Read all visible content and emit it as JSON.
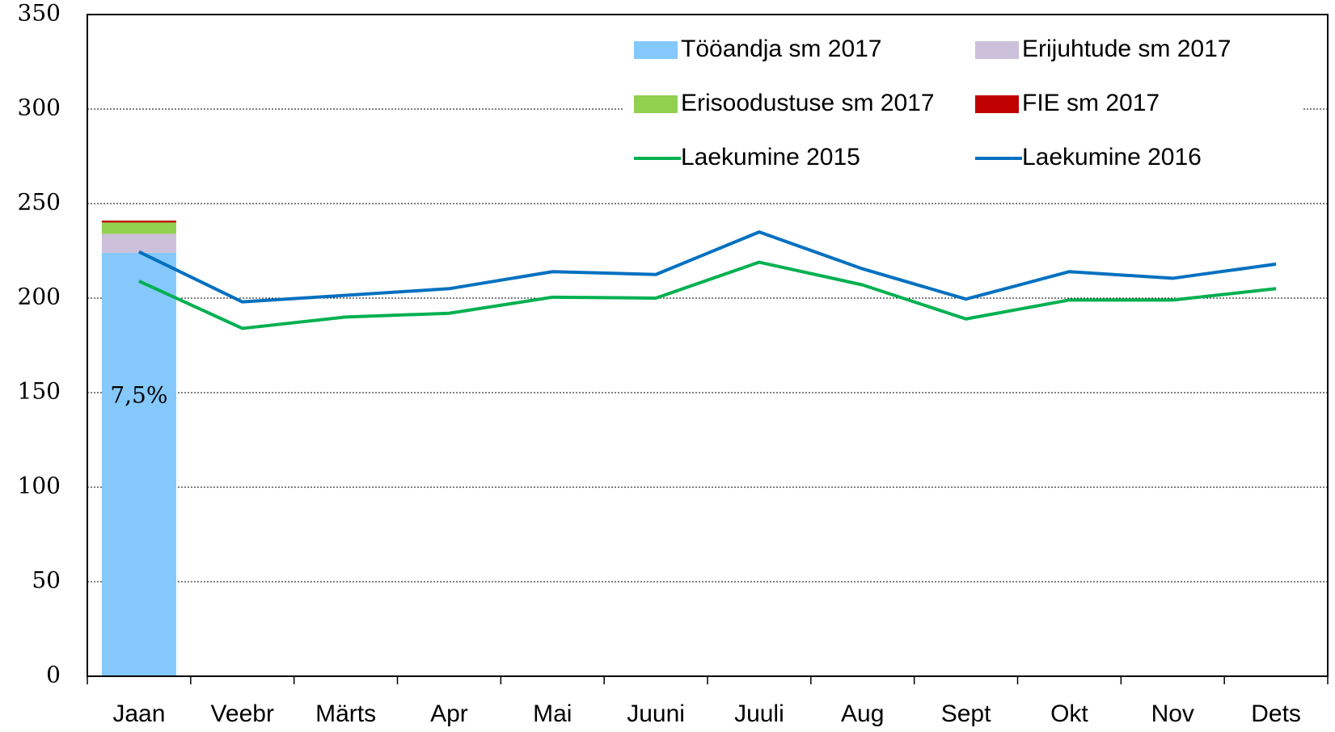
{
  "chart_data": {
    "type": "bar",
    "categories": [
      "Jaan",
      "Veebr",
      "Märts",
      "Apr",
      "Mai",
      "Juuni",
      "Juuli",
      "Aug",
      "Sept",
      "Okt",
      "Nov",
      "Dets"
    ],
    "series": [
      {
        "name": "Tööandja sm 2017",
        "type": "bar",
        "color": "#85c8fb",
        "values": [
          224,
          null,
          null,
          null,
          null,
          null,
          null,
          null,
          null,
          null,
          null,
          null
        ]
      },
      {
        "name": "Erijuhtude sm 2017",
        "type": "bar",
        "color": "#ccc0da",
        "values": [
          10,
          null,
          null,
          null,
          null,
          null,
          null,
          null,
          null,
          null,
          null,
          null
        ]
      },
      {
        "name": "Erisoodustuse sm 2017",
        "type": "bar",
        "color": "#92d050",
        "values": [
          6,
          null,
          null,
          null,
          null,
          null,
          null,
          null,
          null,
          null,
          null,
          null
        ]
      },
      {
        "name": "FIE sm 2017",
        "type": "bar",
        "color": "#c00000",
        "values": [
          1,
          null,
          null,
          null,
          null,
          null,
          null,
          null,
          null,
          null,
          null,
          null
        ]
      },
      {
        "name": "Laekumine 2015",
        "type": "line",
        "color": "#00b050",
        "values": [
          209,
          184,
          190,
          192,
          200.5,
          200,
          219,
          207,
          189,
          199,
          199,
          205
        ]
      },
      {
        "name": "Laekumine 2016",
        "type": "line",
        "color": "#0070c0",
        "values": [
          224.5,
          198,
          201.5,
          205,
          214,
          212.5,
          235,
          215.5,
          199.5,
          214,
          210.5,
          218
        ]
      }
    ],
    "annotation": "7,5%",
    "ylim": [
      0,
      350
    ],
    "yticks": [
      0,
      50,
      100,
      150,
      200,
      250,
      300,
      350
    ],
    "grid": true
  }
}
